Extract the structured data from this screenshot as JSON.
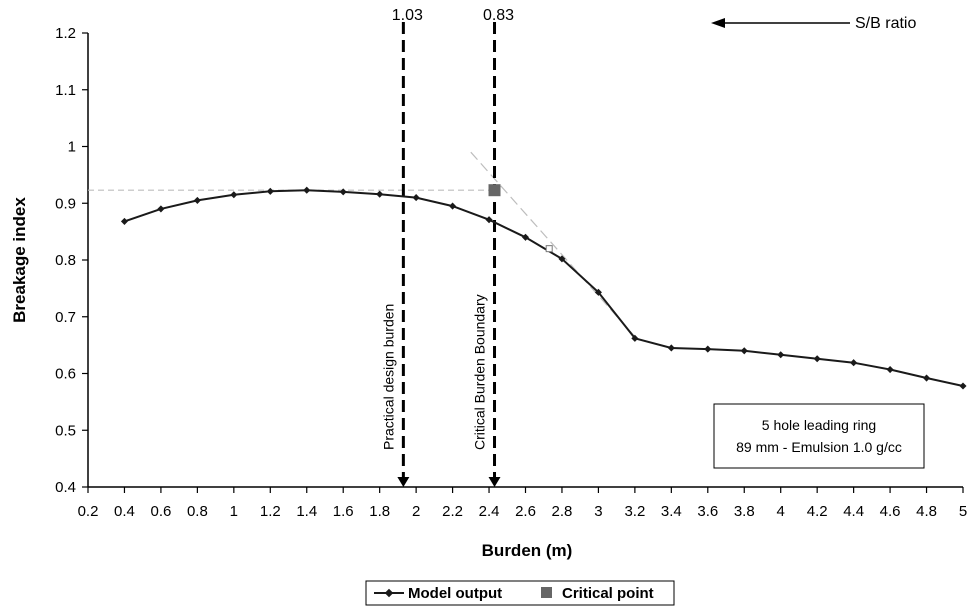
{
  "chart_data": {
    "type": "line",
    "xlabel": "Burden (m)",
    "ylabel": "Breakage index",
    "xlim": [
      0.2,
      5
    ],
    "ylim": [
      0.4,
      1.2
    ],
    "x_ticks": [
      "0.2",
      "0.4",
      "0.6",
      "0.8",
      "1",
      "1.2",
      "1.4",
      "1.6",
      "1.8",
      "2",
      "2.2",
      "2.4",
      "2.6",
      "2.8",
      "3",
      "3.2",
      "3.4",
      "3.6",
      "3.8",
      "4",
      "4.2",
      "4.4",
      "4.6",
      "4.8",
      "5"
    ],
    "y_ticks": [
      "0.4",
      "0.5",
      "0.6",
      "0.7",
      "0.8",
      "0.9",
      "1",
      "1.1",
      "1.2"
    ],
    "grid": false,
    "series": [
      {
        "name": "Model output",
        "x": [
          0.4,
          0.6,
          0.8,
          1.0,
          1.2,
          1.4,
          1.6,
          1.8,
          2.0,
          2.2,
          2.4,
          2.6,
          2.8,
          3.0,
          3.2,
          3.4,
          3.6,
          3.8,
          4.0,
          4.2,
          4.4,
          4.6,
          4.8,
          5.0
        ],
        "y": [
          0.868,
          0.89,
          0.905,
          0.915,
          0.921,
          0.923,
          0.92,
          0.916,
          0.91,
          0.895,
          0.871,
          0.84,
          0.802,
          0.743,
          0.662,
          0.645,
          0.643,
          0.64,
          0.633,
          0.626,
          0.619,
          0.607,
          0.592,
          0.578
        ]
      }
    ],
    "critical_point": {
      "name": "Critical point",
      "x": 2.43,
      "y": 0.923
    },
    "extra_marker": {
      "x": 2.73,
      "y": 0.82
    },
    "reference_lines": {
      "horizontal_y": 0.923,
      "tangent": {
        "x1": 2.3,
        "y1": 0.99,
        "x2": 3.2,
        "y2": 0.665
      }
    },
    "vertical_lines": [
      {
        "x": 1.93,
        "top_value": "1.03",
        "label": "Practical design burden"
      },
      {
        "x": 2.43,
        "top_value": "0.83",
        "label": "Critical Burden Boundary"
      }
    ],
    "secondary_axis_label": "S/B ratio",
    "annotation_box": [
      "5 hole leading ring",
      "89 mm - Emulsion 1.0 g/cc"
    ],
    "legend": {
      "position": "bottom",
      "items": [
        "Model output",
        "Critical point"
      ]
    },
    "colors": {
      "line": "#1a1a1a",
      "critical_marker": "#666666",
      "reference": "#bdbdbd"
    }
  }
}
